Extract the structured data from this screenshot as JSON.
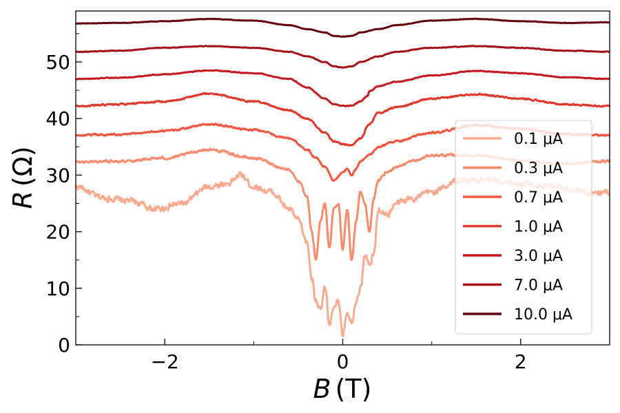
{
  "chart_data": {
    "type": "line",
    "x_axis": {
      "label_var": "B",
      "label_unit": "(T)",
      "lim": [
        -3,
        3
      ],
      "ticks": [
        -2,
        0,
        2
      ],
      "tick_labels": [
        "−2",
        "0",
        "2"
      ]
    },
    "y_axis": {
      "label_var": "R",
      "label_unit": "(Ω)",
      "lim": [
        0,
        59
      ],
      "ticks": [
        0,
        10,
        20,
        30,
        40,
        50
      ],
      "tick_labels": [
        "0",
        "10",
        "20",
        "30",
        "40",
        "50"
      ]
    },
    "legend_position": "lower-right",
    "grid": false,
    "series": [
      {
        "name": "0.1 μA",
        "color": "#fcaa8e",
        "noise": 0.9,
        "x": [
          -3,
          -2.7,
          -2.4,
          -2.1,
          -1.8,
          -1.5,
          -1.3,
          -1.15,
          -1.0,
          -0.8,
          -0.6,
          -0.5,
          -0.4,
          -0.35,
          -0.3,
          -0.25,
          -0.2,
          -0.15,
          -0.1,
          -0.05,
          0,
          0.05,
          0.1,
          0.15,
          0.2,
          0.25,
          0.3,
          0.35,
          0.4,
          0.5,
          0.6,
          0.8,
          1.0,
          1.3,
          1.6,
          2.0,
          2.4,
          2.7,
          3.0
        ],
        "y": [
          28,
          26,
          25.5,
          24,
          25,
          28,
          28.5,
          30,
          28,
          27,
          24,
          22,
          18,
          12,
          8,
          6,
          10,
          4,
          6,
          8,
          2,
          6,
          4,
          8,
          10,
          16,
          14,
          16,
          24,
          23,
          25,
          26,
          27,
          29,
          29,
          28.5,
          28,
          27,
          27
        ]
      },
      {
        "name": "0.3 μA",
        "color": "#fc8a6a",
        "noise": 0.35,
        "x": [
          -3,
          -2.5,
          -2.0,
          -1.5,
          -1.0,
          -0.6,
          -0.5,
          -0.4,
          -0.35,
          -0.3,
          -0.25,
          -0.2,
          -0.15,
          -0.1,
          -0.05,
          0,
          0.05,
          0.1,
          0.15,
          0.2,
          0.25,
          0.3,
          0.35,
          0.4,
          0.5,
          0.6,
          0.8,
          1.0,
          1.5,
          2.0,
          2.5,
          3.0
        ],
        "y": [
          32.3,
          32.5,
          33,
          34.5,
          33,
          31,
          29,
          26,
          20,
          15,
          22,
          25,
          17,
          24,
          25,
          17,
          24,
          15,
          22,
          27,
          25,
          20,
          26,
          29,
          30.5,
          31.5,
          32.5,
          33.5,
          33.5,
          32.5,
          32,
          32.5
        ]
      },
      {
        "name": "0.7 μA",
        "color": "#f5543d",
        "noise": 0.25,
        "x": [
          -3,
          -2.5,
          -2.0,
          -1.5,
          -1.0,
          -0.6,
          -0.4,
          -0.3,
          -0.2,
          -0.1,
          0,
          0.05,
          0.1,
          0.15,
          0.2,
          0.3,
          0.4,
          0.6,
          1.0,
          1.5,
          2.0,
          2.5,
          3.0
        ],
        "y": [
          37,
          37.2,
          37.8,
          39,
          38,
          36.5,
          34.5,
          33,
          31.5,
          29,
          30.5,
          31,
          30,
          31,
          32.5,
          33.5,
          35,
          36,
          37.5,
          38.8,
          38.2,
          37.2,
          37
        ]
      },
      {
        "name": "1.0 μA",
        "color": "#e53529",
        "noise": 0.2,
        "x": [
          -3,
          -2.5,
          -2.0,
          -1.5,
          -1.0,
          -0.6,
          -0.4,
          -0.2,
          -0.1,
          0,
          0.1,
          0.2,
          0.3,
          0.4,
          0.6,
          1.0,
          1.5,
          2.0,
          2.5,
          3.0
        ],
        "y": [
          42.2,
          42.5,
          43,
          44.4,
          43,
          41.5,
          40,
          37.5,
          36,
          35.5,
          35.3,
          36.5,
          39,
          41,
          42,
          43.5,
          44.3,
          43.5,
          42.5,
          42.2
        ]
      },
      {
        "name": "3.0 μA",
        "color": "#c8171c",
        "noise": 0.1,
        "x": [
          -3,
          -2.5,
          -2.0,
          -1.5,
          -1.0,
          -0.6,
          -0.4,
          -0.2,
          -0.1,
          0,
          0.1,
          0.2,
          0.28,
          0.3,
          0.4,
          0.6,
          1.0,
          1.5,
          2.0,
          2.5,
          3.0
        ],
        "y": [
          47,
          47.2,
          47.8,
          48.5,
          48,
          47,
          45.5,
          43.5,
          42.5,
          42.2,
          42.3,
          43,
          44,
          44.8,
          45.7,
          46.5,
          47.6,
          48.4,
          48,
          47.3,
          47
        ]
      },
      {
        "name": "7.0 μA",
        "color": "#a50f15",
        "noise": 0.08,
        "x": [
          -3,
          -2.5,
          -2.0,
          -1.5,
          -1.0,
          -0.6,
          -0.4,
          -0.2,
          -0.1,
          0,
          0.1,
          0.2,
          0.4,
          0.6,
          1.0,
          1.5,
          2.0,
          2.5,
          3.0
        ],
        "y": [
          51.8,
          52,
          52.5,
          52.8,
          52.5,
          51.8,
          51,
          50,
          49.2,
          49,
          49.2,
          50,
          51,
          51.8,
          52.5,
          52.8,
          52.5,
          52,
          51.8
        ]
      },
      {
        "name": "10.0 μA",
        "color": "#67000d",
        "noise": 0.06,
        "x": [
          -3,
          -2.5,
          -2.0,
          -1.5,
          -1.0,
          -0.6,
          -0.4,
          -0.2,
          -0.1,
          0,
          0.1,
          0.2,
          0.4,
          0.6,
          1.0,
          1.5,
          2.0,
          2.5,
          3.0
        ],
        "y": [
          56.8,
          56.9,
          57.2,
          57.6,
          57.3,
          56.5,
          55.8,
          55.2,
          54.6,
          54.5,
          54.6,
          55.2,
          55.8,
          56.5,
          57.3,
          57.6,
          57.2,
          56.9,
          57
        ]
      }
    ]
  }
}
